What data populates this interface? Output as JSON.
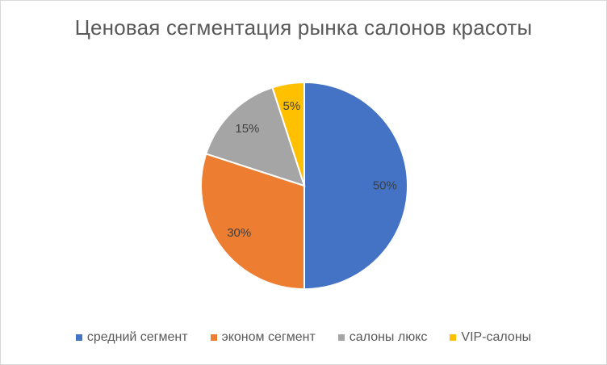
{
  "chart_data": {
    "type": "pie",
    "title": "Ценовая сегментация рынка салонов красоты",
    "categories": [
      "средний сегмент",
      "эконом сегмент",
      "салоны люкс",
      "VIP-салоны"
    ],
    "values": [
      50,
      30,
      15,
      5
    ],
    "data_labels": [
      "50%",
      "30%",
      "15%",
      "5%"
    ],
    "colors": [
      "#4472c4",
      "#ed7d31",
      "#a5a5a5",
      "#ffc000"
    ],
    "legend_position": "bottom",
    "start_angle": "top, clockwise"
  }
}
